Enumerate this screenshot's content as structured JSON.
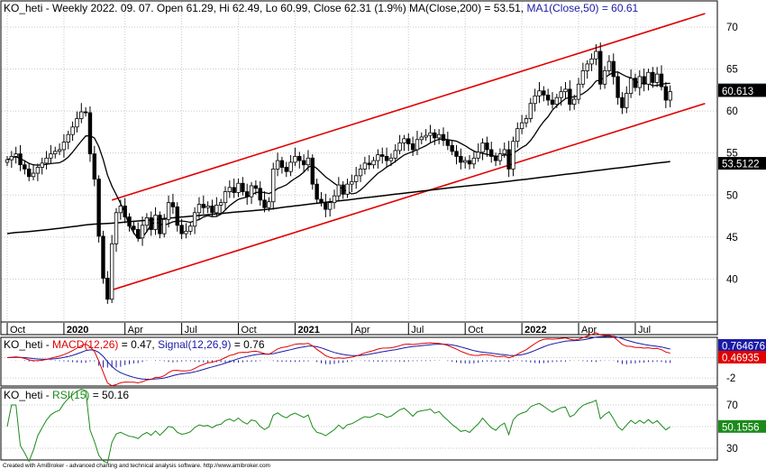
{
  "header": {
    "symbol": "KO_heti",
    "info": " - Weekly 2022. 09. 07. Open 61.29, Hi 62.49, Lo 60.99, Close 62.31 (1.9%) MA(Close,200) = 53.51, ",
    "ma50_text": "MA1(Close,50) = 60.61"
  },
  "chart_data": [
    {
      "type": "candlestick",
      "ylim": [
        35,
        73
      ],
      "y_ticks": [
        40,
        45,
        50,
        55,
        60,
        65,
        70
      ],
      "grid": true,
      "x_labels": [
        {
          "label": "Oct",
          "week": 0,
          "bold": false
        },
        {
          "label": "2020",
          "week": 13,
          "bold": true
        },
        {
          "label": "Apr",
          "week": 27,
          "bold": false
        },
        {
          "label": "Jul",
          "week": 40,
          "bold": false
        },
        {
          "label": "Oct",
          "week": 53,
          "bold": false
        },
        {
          "label": "2021",
          "week": 66,
          "bold": true
        },
        {
          "label": "Apr",
          "week": 79,
          "bold": false
        },
        {
          "label": "Jul",
          "week": 92,
          "bold": false
        },
        {
          "label": "Oct",
          "week": 105,
          "bold": false
        },
        {
          "label": "2022",
          "week": 118,
          "bold": true
        },
        {
          "label": "Apr",
          "week": 131,
          "bold": false
        },
        {
          "label": "Jul",
          "week": 144,
          "bold": false
        }
      ],
      "closes": [
        54.2,
        54.6,
        54.9,
        53.6,
        53.1,
        52.2,
        52.6,
        53.3,
        53.8,
        54.4,
        54.9,
        55.2,
        55.4,
        56.3,
        57.2,
        58.1,
        59.1,
        59.9,
        59.8,
        54.9,
        51.9,
        45.1,
        40.1,
        37.6,
        44.2,
        47.9,
        48.7,
        47.4,
        46.3,
        45.9,
        44.9,
        46.4,
        47.3,
        45.9,
        47.6,
        45.4,
        47.1,
        49.1,
        48.6,
        46.4,
        45.4,
        45.7,
        46.3,
        47.9,
        48.9,
        48.5,
        48.7,
        47.9,
        48.8,
        49.1,
        50.4,
        50.9,
        50.3,
        51.4,
        50.4,
        49.8,
        51.1,
        50.8,
        49.4,
        48.5,
        49.2,
        53.1,
        54.1,
        53.3,
        52.8,
        53.9,
        54.6,
        54.1,
        53.6,
        54.4,
        51.3,
        49.5,
        49.1,
        48.3,
        49.1,
        49.9,
        51.2,
        50.1,
        51.3,
        51.6,
        52.3,
        53.1,
        53.8,
        53.6,
        54.1,
        54.8,
        54.6,
        54.1,
        54.4,
        55.3,
        56.2,
        56.7,
        56.1,
        55.4,
        56.6,
        56.9,
        57.1,
        57.4,
        56.8,
        57.2,
        56.5,
        55.9,
        55.2,
        54.6,
        53.9,
        54.1,
        53.7,
        54.4,
        55.1,
        56.2,
        55.4,
        54.6,
        54.1,
        54.9,
        55.4,
        53.1,
        56.4,
        57.9,
        58.6,
        59.1,
        60.9,
        61.8,
        62.4,
        61.9,
        61.3,
        60.8,
        61.6,
        62.3,
        62.6,
        60.8,
        61.4,
        63.2,
        64.8,
        65.6,
        66.2,
        67.1,
        63.2,
        64.8,
        65.9,
        64.1,
        61.6,
        60.4,
        62.1,
        63.9,
        62.8,
        64.1,
        63.2,
        64.6,
        63.4,
        64.4,
        62.9,
        61.3,
        62.31
      ],
      "series": [
        {
          "name": "MA(Close,200) = 53.51",
          "label": "53.5122",
          "color": "#000000"
        },
        {
          "name": "MA1(Close,50) = 60.61",
          "label": "60.613",
          "color": "#000000"
        },
        {
          "name": "Close",
          "label": "62.31",
          "color": "#000000"
        }
      ],
      "channel": {
        "color": "#e00000",
        "upper": {
          "from": [
            24,
            49.4
          ],
          "to": [
            160,
            71.6
          ]
        },
        "lower": {
          "from": [
            24,
            38.7
          ],
          "to": [
            160,
            60.9
          ]
        }
      }
    },
    {
      "type": "line",
      "name": "MACD",
      "title_prefix": "KO_heti - ",
      "macd_label": "MACD(12,26)",
      "macd_value": " = 0.47, ",
      "signal_label": "Signal(12,26,9)",
      "signal_value": " = 0.76",
      "ylim": [
        -2.7,
        1.9
      ],
      "y_ticks": [
        -2
      ],
      "macd_color": "#e00000",
      "signal_color": "#1a1aa6",
      "macd_value_label": "0.46935",
      "signal_value_label": "0.764676"
    },
    {
      "type": "line",
      "name": "RSI",
      "title_prefix": "KO_heti - ",
      "rsi_label": "RSI(15)",
      "rsi_value": " = 50.16",
      "ylim": [
        20,
        85
      ],
      "y_ticks": [
        30,
        50,
        70
      ],
      "color": "#1b8a1b",
      "value_label": "50.1556"
    }
  ],
  "footer": "Created with AmiBroker - advanced charting and technical analysis software. http://www.amibroker.com"
}
